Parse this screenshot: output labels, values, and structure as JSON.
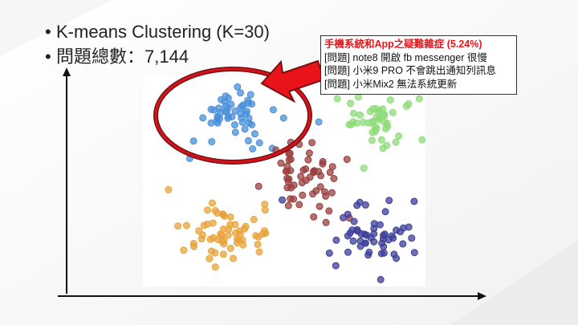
{
  "slide": {
    "bullets": [
      "K-means Clustering (K=30)",
      "問題總數：7,144"
    ]
  },
  "callout": {
    "title": "手機系統和App之疑難雜症 (5.24%)",
    "lines": [
      "[問題] note8 開啟 fb messenger 很慢",
      "[問題] 小米9 PRO 不會跳出通知列訊息",
      "[問題] 小米Mix2 無法系統更新"
    ]
  },
  "chart_data": {
    "type": "scatter",
    "title": "",
    "xlabel": "",
    "ylabel": "",
    "grid": false,
    "clusters": [
      {
        "color": "#4a90d9",
        "highlighted": true
      },
      {
        "color": "#8fdc7a"
      },
      {
        "color": "#9b3f3f"
      },
      {
        "color": "#e8a33a"
      },
      {
        "color": "#3d3f9a"
      }
    ],
    "highlight_color": "#d0141a"
  }
}
